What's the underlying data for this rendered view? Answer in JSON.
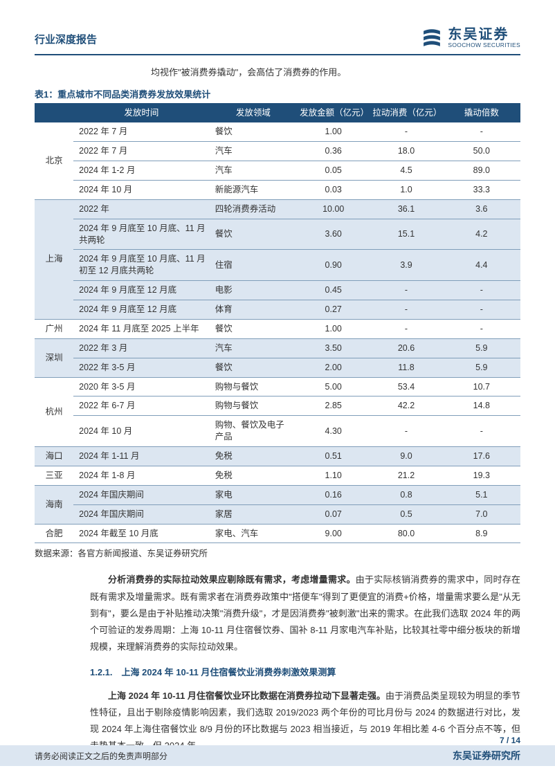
{
  "header": {
    "report_type": "行业深度报告",
    "logo_cn": "东吴证券",
    "logo_en": "SOOCHOW SECURITIES"
  },
  "intro_line": "均视作\"被消费券撬动\"，会高估了消费券的作用。",
  "table": {
    "caption_prefix": "表1：",
    "caption": "重点城市不同品类消费券发放效果统计",
    "columns": [
      "",
      "发放时间",
      "发放领域",
      "发放金额（亿元）",
      "拉动消费（亿元）",
      "撬动倍数"
    ],
    "source": "数据来源：各官方新闻报道、东吴证券研究所",
    "header_bg": "#1f4e79",
    "header_fg": "#ffffff",
    "alt_bg": "#dce6f1",
    "border_color": "#7f9db9",
    "groups": [
      {
        "city": "北京",
        "alt": false,
        "rows": [
          {
            "time": "2022 年 7 月",
            "sector": "餐饮",
            "amt": "1.00",
            "pull": "-",
            "mult": "-"
          },
          {
            "time": "2022 年 7 月",
            "sector": "汽车",
            "amt": "0.36",
            "pull": "18.0",
            "mult": "50.0"
          },
          {
            "time": "2024 年 1-2 月",
            "sector": "汽车",
            "amt": "0.05",
            "pull": "4.5",
            "mult": "89.0"
          },
          {
            "time": "2024 年 10 月",
            "sector": "新能源汽车",
            "amt": "0.03",
            "pull": "1.0",
            "mult": "33.3"
          }
        ]
      },
      {
        "city": "上海",
        "alt": true,
        "rows": [
          {
            "time": "2022 年",
            "sector": "四轮消费券活动",
            "amt": "10.00",
            "pull": "36.1",
            "mult": "3.6"
          },
          {
            "time": "2024 年 9 月底至 10 月底、11 月共两轮",
            "sector": "餐饮",
            "amt": "3.60",
            "pull": "15.1",
            "mult": "4.2"
          },
          {
            "time": "2024 年 9 月底至 10 月底、11 月初至 12 月底共两轮",
            "sector": "住宿",
            "amt": "0.90",
            "pull": "3.9",
            "mult": "4.4"
          },
          {
            "time": "2024 年 9 月底至 12 月底",
            "sector": "电影",
            "amt": "0.45",
            "pull": "-",
            "mult": "-"
          },
          {
            "time": "2024 年 9 月底至 12 月底",
            "sector": "体育",
            "amt": "0.27",
            "pull": "-",
            "mult": "-"
          }
        ]
      },
      {
        "city": "广州",
        "alt": false,
        "rows": [
          {
            "time": "2024 年 11 月底至 2025 上半年",
            "sector": "餐饮",
            "amt": "1.00",
            "pull": "-",
            "mult": "-"
          }
        ]
      },
      {
        "city": "深圳",
        "alt": true,
        "rows": [
          {
            "time": "2022 年 3 月",
            "sector": "汽车",
            "amt": "3.50",
            "pull": "20.6",
            "mult": "5.9"
          },
          {
            "time": "2022 年 3-5 月",
            "sector": "餐饮",
            "amt": "2.00",
            "pull": "11.8",
            "mult": "5.9"
          }
        ]
      },
      {
        "city": "杭州",
        "alt": false,
        "rows": [
          {
            "time": "2020 年 3-5 月",
            "sector": "购物与餐饮",
            "amt": "5.00",
            "pull": "53.4",
            "mult": "10.7"
          },
          {
            "time": "2022 年 6-7 月",
            "sector": "购物与餐饮",
            "amt": "2.85",
            "pull": "42.2",
            "mult": "14.8"
          },
          {
            "time": "2024 年 10 月",
            "sector": "购物、餐饮及电子产品",
            "amt": "4.30",
            "pull": "-",
            "mult": "-"
          }
        ]
      },
      {
        "city": "海口",
        "alt": true,
        "rows": [
          {
            "time": "2024 年 1-11 月",
            "sector": "免税",
            "amt": "0.51",
            "pull": "9.0",
            "mult": "17.6"
          }
        ]
      },
      {
        "city": "三亚",
        "alt": false,
        "rows": [
          {
            "time": "2024 年 1-8 月",
            "sector": "免税",
            "amt": "1.10",
            "pull": "21.2",
            "mult": "19.3"
          }
        ]
      },
      {
        "city": "海南",
        "alt": true,
        "rows": [
          {
            "time": "2024 年国庆期间",
            "sector": "家电",
            "amt": "0.16",
            "pull": "0.8",
            "mult": "5.1"
          },
          {
            "time": "2024 年国庆期间",
            "sector": "家居",
            "amt": "0.07",
            "pull": "0.5",
            "mult": "7.0"
          }
        ]
      },
      {
        "city": "合肥",
        "alt": false,
        "rows": [
          {
            "time": "2024 年截至 10 月底",
            "sector": "家电、汽车",
            "amt": "9.00",
            "pull": "80.0",
            "mult": "8.9"
          }
        ]
      }
    ]
  },
  "paragraph1": {
    "bold": "分析消费券的实际拉动效果应剔除既有需求，考虑增量需求。",
    "text": "由于实际核销消费券的需求中，同时存在既有需求及增量需求。既有需求者在消费券政策中\"搭便车\"得到了更便宜的消费+价格，增量需求要么是\"从无到有\"，要么是由于补贴推动决策\"消费升级\"，才是因消费券\"被刺激\"出来的需求。在此我们选取 2024 年的两个可验证的发券周期：上海 10-11 月住宿餐饮券、国补 8-11 月家电汽车补贴，比较其社零中细分板块的新增规模，来理解消费券的实际拉动效果。"
  },
  "section_heading": "1.2.1.　上海 2024 年 10-11 月住宿餐饮业消费券刺激效果测算",
  "paragraph2": {
    "bold": "上海 2024 年 10-11 月住宿餐饮业环比数据在消费券拉动下显著走强。",
    "text": "由于消费品类呈现较为明显的季节性特征，且出于剔除疫情影响因素，我们选取 2019/2023 两个年份的可比月份与 2024 的数据进行对比，发现 2024 年上海住宿餐饮业 8/9 月份的环比数据与 2023 相当接近，与 2019 年相比差 4-6 个百分点不等，但走势基本一致。但 2024 年"
  },
  "page_number": "7 / 14",
  "footer": {
    "left": "请务必阅读正文之后的免责声明部分",
    "right": "东吴证券研究所"
  },
  "colors": {
    "brand": "#1f4e79",
    "footer_bg": "#dce6f1"
  }
}
